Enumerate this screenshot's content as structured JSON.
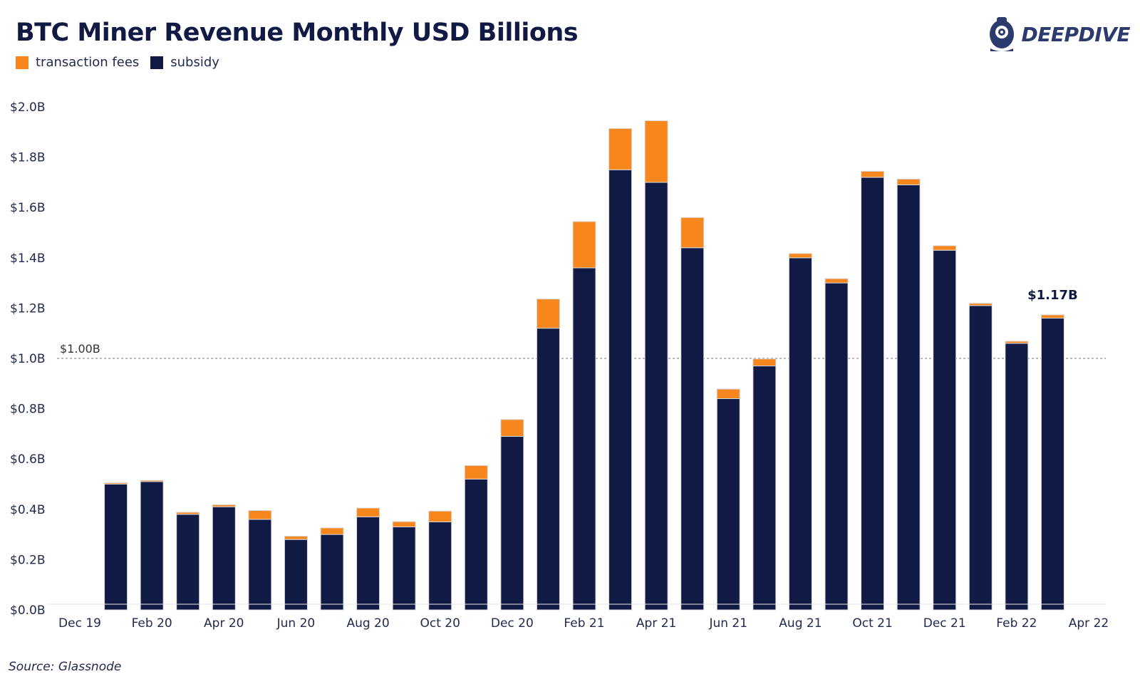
{
  "header": {
    "title": "BTC Miner Revenue Monthly USD Billions",
    "logo_text": "DEEPDIVE",
    "logo_icon": "diver-helmet-icon"
  },
  "legend": [
    {
      "label": "transaction fees",
      "color": "#f7861c"
    },
    {
      "label": "subsidy",
      "color": "#111a44"
    }
  ],
  "footer": {
    "source": "Source: Glassnode"
  },
  "chart_data": {
    "type": "bar",
    "stacked": true,
    "title": "BTC Miner Revenue Monthly USD Billions",
    "xlabel": "",
    "ylabel": "",
    "ylim": [
      0,
      2.0
    ],
    "yticks": [
      0.0,
      0.2,
      0.4,
      0.6,
      0.8,
      1.0,
      1.2,
      1.4,
      1.6,
      1.8,
      2.0
    ],
    "ytick_labels": [
      "$0.0B",
      "$0.2B",
      "$0.4B",
      "$0.6B",
      "$0.8B",
      "$1.0B",
      "$1.2B",
      "$1.4B",
      "$1.6B",
      "$1.8B",
      "$2.0B"
    ],
    "xtick_labels": [
      "Dec 19",
      "Feb 20",
      "Apr 20",
      "Jun 20",
      "Aug 20",
      "Oct 20",
      "Dec 20",
      "Feb 21",
      "Apr 21",
      "Jun 21",
      "Aug 21",
      "Oct 21",
      "Dec 21",
      "Feb 22",
      "Apr 22"
    ],
    "categories": [
      "Jan 20",
      "Feb 20",
      "Mar 20",
      "Apr 20",
      "May 20",
      "Jun 20",
      "Jul 20",
      "Aug 20",
      "Sep 20",
      "Oct 20",
      "Nov 20",
      "Dec 20",
      "Jan 21",
      "Feb 21",
      "Mar 21",
      "Apr 21",
      "May 21",
      "Jun 21",
      "Jul 21",
      "Aug 21",
      "Sep 21",
      "Oct 21",
      "Nov 21",
      "Dec 21",
      "Jan 22",
      "Feb 22",
      "Mar 22"
    ],
    "series": [
      {
        "name": "subsidy",
        "color": "#111a44",
        "values": [
          0.5,
          0.51,
          0.38,
          0.41,
          0.36,
          0.28,
          0.3,
          0.37,
          0.33,
          0.35,
          0.52,
          0.69,
          1.12,
          1.36,
          1.75,
          1.7,
          1.44,
          0.84,
          0.97,
          1.4,
          1.3,
          1.72,
          1.69,
          1.43,
          1.21,
          1.06,
          1.16
        ]
      },
      {
        "name": "transaction fees",
        "color": "#f7861c",
        "values": [
          0.005,
          0.005,
          0.008,
          0.008,
          0.035,
          0.013,
          0.026,
          0.035,
          0.021,
          0.043,
          0.054,
          0.067,
          0.116,
          0.184,
          0.164,
          0.245,
          0.12,
          0.038,
          0.028,
          0.017,
          0.017,
          0.024,
          0.023,
          0.018,
          0.009,
          0.008,
          0.013
        ]
      }
    ],
    "reference_line": {
      "value": 1.0,
      "label": "$1.00B",
      "style": "dashed"
    },
    "annotation": {
      "category": "Mar 22",
      "label": "$1.17B"
    },
    "grid": false,
    "legend_position": "top-left"
  }
}
